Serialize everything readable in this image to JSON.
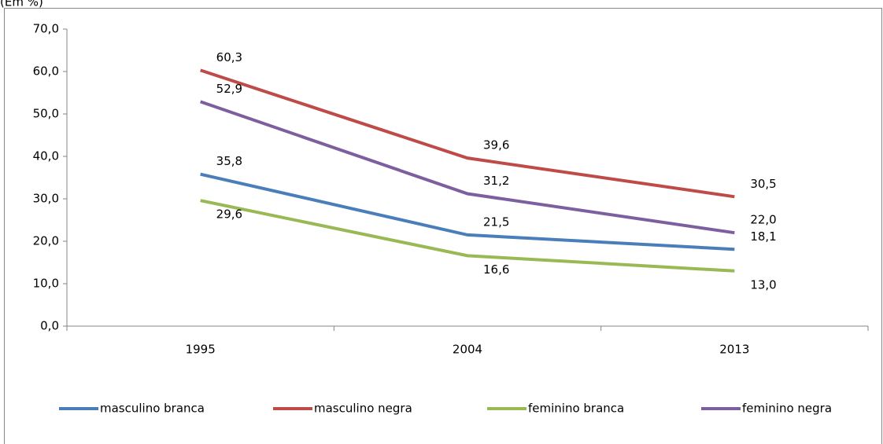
{
  "chart_data": {
    "type": "line",
    "title": "(Em %)",
    "categories": [
      "1995",
      "2004",
      "2013"
    ],
    "series": [
      {
        "name": "masculino branca",
        "color": "#4a7ebb",
        "values": [
          35.8,
          21.5,
          18.1
        ],
        "value_labels": [
          "35,8",
          "21,5",
          "18,1"
        ]
      },
      {
        "name": "masculino negra",
        "color": "#be4b48",
        "values": [
          60.3,
          39.6,
          30.5
        ],
        "value_labels": [
          "60,3",
          "39,6",
          "30,5"
        ]
      },
      {
        "name": "feminino branca",
        "color": "#98b954",
        "values": [
          29.6,
          16.6,
          13.0
        ],
        "value_labels": [
          "29,6",
          "16,6",
          "13,0"
        ]
      },
      {
        "name": "feminino negra",
        "color": "#7d5fa0",
        "values": [
          52.9,
          31.2,
          22.0
        ],
        "value_labels": [
          "52,9",
          "31,2",
          "22,0"
        ]
      }
    ],
    "ylim": [
      0,
      70
    ],
    "yticks": [
      {
        "value": 0,
        "label": "0,0"
      },
      {
        "value": 10,
        "label": "10,0"
      },
      {
        "value": 20,
        "label": "20,0"
      },
      {
        "value": 30,
        "label": "30,0"
      },
      {
        "value": 40,
        "label": "40,0"
      },
      {
        "value": 50,
        "label": "50,0"
      },
      {
        "value": 60,
        "label": "60,0"
      },
      {
        "value": 70,
        "label": "70,0"
      }
    ],
    "grid": false,
    "legend": "bottom"
  }
}
